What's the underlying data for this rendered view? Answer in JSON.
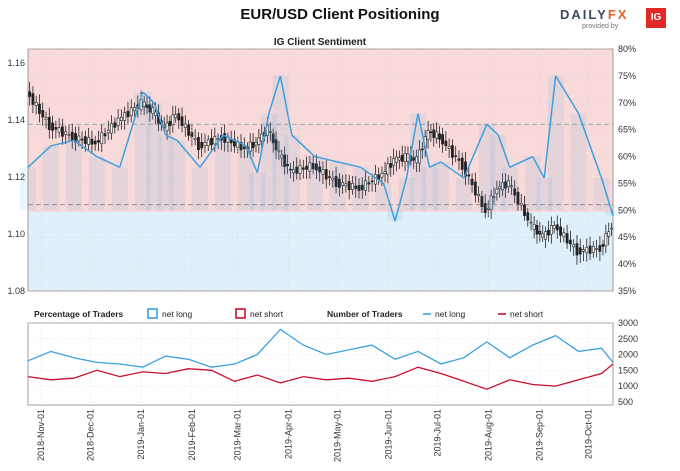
{
  "header": {
    "title": "EUR/USD Client Positioning",
    "brand_word_1": "DAILY",
    "brand_word_2": "FX",
    "brand_sub": "provided by",
    "brand_badge": "IG"
  },
  "colors": {
    "net_long": "#3aa0e0",
    "net_short": "#c8102e",
    "bull_zone": "#f9dada",
    "bear_zone": "#dff0fb",
    "candle_up": "#ffffff",
    "candle_down": "#222222"
  },
  "legend": {
    "pct_label": "Percentage of Traders",
    "pct_long": "net long",
    "pct_short": "net short",
    "num_label": "Number of Traders",
    "num_long": "net long",
    "num_short": "net short"
  },
  "chart_data": [
    {
      "type": "line",
      "title": "IG Client Sentiment",
      "ylabel_left": "",
      "ylabel_right": "",
      "ylim_left": [
        1.08,
        1.165
      ],
      "ylim_right": [
        35,
        80
      ],
      "yticks_left": [
        "1.08",
        "1.10",
        "1.12",
        "1.14",
        "1.16"
      ],
      "yticks_right": [
        "35%",
        "40%",
        "45%",
        "50%",
        "55%",
        "60%",
        "65%",
        "70%",
        "75%",
        "80%"
      ],
      "reference_lines": {
        "price": 1.1103,
        "percent": 66
      },
      "x_dates": [
        "2018-10-24",
        "2018-11-07",
        "2018-11-21",
        "2018-12-05",
        "2018-12-19",
        "2019-01-02",
        "2019-01-09",
        "2019-01-16",
        "2019-01-23",
        "2019-02-06",
        "2019-02-20",
        "2019-03-06",
        "2019-03-13",
        "2019-03-20",
        "2019-03-27",
        "2019-04-03",
        "2019-04-17",
        "2019-05-01",
        "2019-05-15",
        "2019-05-29",
        "2019-06-05",
        "2019-06-12",
        "2019-06-19",
        "2019-06-26",
        "2019-07-03",
        "2019-07-17",
        "2019-07-31",
        "2019-08-07",
        "2019-08-14",
        "2019-08-28",
        "2019-09-04",
        "2019-09-11",
        "2019-09-25",
        "2019-10-09",
        "2019-10-16"
      ],
      "series": [
        {
          "name": "EUR/USD",
          "values": [
            1.15,
            1.138,
            1.134,
            1.132,
            1.14,
            1.146,
            1.143,
            1.137,
            1.142,
            1.131,
            1.134,
            1.13,
            1.132,
            1.137,
            1.128,
            1.122,
            1.124,
            1.118,
            1.116,
            1.121,
            1.126,
            1.127,
            1.126,
            1.136,
            1.134,
            1.124,
            1.108,
            1.116,
            1.118,
            1.103,
            1.099,
            1.103,
            1.094,
            1.095,
            1.103
          ]
        },
        {
          "name": "net long",
          "values": [
            58,
            62,
            63,
            60,
            58,
            72,
            70,
            64,
            63,
            58,
            64,
            62,
            57,
            68,
            75,
            64,
            60,
            59,
            58,
            55,
            48,
            56,
            68,
            58,
            59,
            56,
            66,
            64,
            58,
            60,
            56,
            75,
            68,
            56,
            49
          ]
        }
      ]
    },
    {
      "type": "line",
      "title": "",
      "ylim": [
        400,
        3000
      ],
      "yticks": [
        "500",
        "1000",
        "1500",
        "2000",
        "2500",
        "3000"
      ],
      "x_ticks": [
        "2018-Nov-01",
        "2018-Dec-01",
        "2019-Jan-01",
        "2019-Feb-01",
        "2019-Mar-01",
        "2019-Apr-01",
        "2019-May-01",
        "2019-Jun-01",
        "2019-Jul-01",
        "2019-Aug-01",
        "2019-Sep-01",
        "2019-Oct-01"
      ],
      "x_dates": [
        "2018-10-24",
        "2018-11-07",
        "2018-11-21",
        "2018-12-05",
        "2018-12-19",
        "2019-01-02",
        "2019-01-16",
        "2019-01-30",
        "2019-02-13",
        "2019-02-27",
        "2019-03-13",
        "2019-03-27",
        "2019-04-10",
        "2019-04-24",
        "2019-05-08",
        "2019-05-22",
        "2019-06-05",
        "2019-06-19",
        "2019-07-03",
        "2019-07-17",
        "2019-07-31",
        "2019-08-14",
        "2019-08-28",
        "2019-09-11",
        "2019-09-25",
        "2019-10-09",
        "2019-10-16"
      ],
      "series": [
        {
          "name": "net long",
          "values": [
            1800,
            2100,
            1900,
            1750,
            1700,
            1600,
            1950,
            1850,
            1600,
            1700,
            2000,
            2800,
            2300,
            2000,
            2150,
            2300,
            1850,
            2100,
            1700,
            1900,
            2400,
            1900,
            2300,
            2600,
            2100,
            2200,
            1750
          ]
        },
        {
          "name": "net short",
          "values": [
            1300,
            1200,
            1250,
            1500,
            1300,
            1450,
            1400,
            1550,
            1500,
            1150,
            1350,
            1100,
            1300,
            1200,
            1250,
            1150,
            1300,
            1600,
            1400,
            1150,
            900,
            1200,
            1050,
            1000,
            1200,
            1400,
            1700
          ]
        }
      ]
    }
  ]
}
